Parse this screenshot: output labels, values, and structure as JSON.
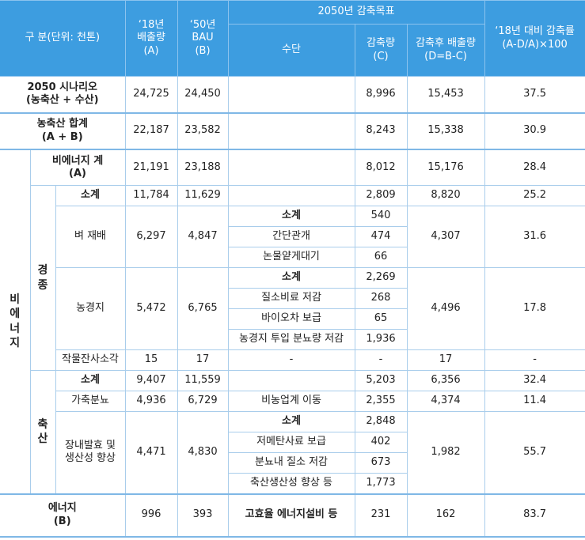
{
  "header": {
    "category": "구 분(단위: 천톤)",
    "emissions_2018": "‘18년\n배출량\n(A)",
    "bau_2050": "‘50년\nBAU\n(B)",
    "target_2050": "2050년 감축목표",
    "means": "수단",
    "reduction": "감축량\n(C)",
    "post_reduction": "감축후 배출량\n(D=B-C)",
    "reduction_rate": "‘18년 대비 감축률\n(A-D/A)×100"
  },
  "table": {
    "rows": [
      [
        "2050 시나리오\n(농축산 + 수산)",
        "24,725",
        "24,450",
        "8,996",
        "15,453",
        "37.5"
      ],
      [
        "농축산 합계\n(A + B)",
        "22,187",
        "23,582",
        "8,243",
        "15,338",
        "30.9"
      ],
      [
        "비\n에\n너\n지",
        "비에너지 계\n(A)",
        "21,191",
        "23,188",
        "8,012",
        "15,176",
        "28.4"
      ],
      [
        "경\n종",
        "소계",
        "11,784",
        "11,629",
        "2,809",
        "8,820",
        "25.2"
      ],
      [
        "벼 재배",
        "6,297",
        "4,847",
        "소계",
        "540",
        "4,307",
        "31.6"
      ],
      [
        "간단관개",
        "474"
      ],
      [
        "논물얕게대기",
        "66"
      ],
      [
        "농경지",
        "5,472",
        "6,765",
        "소계",
        "2,269",
        "4,496",
        "17.8"
      ],
      [
        "질소비료 저감",
        "268"
      ],
      [
        "바이오차 보급",
        "65"
      ],
      [
        "농경지 투입 분뇨량 저감",
        "1,936"
      ],
      [
        "작물잔사소각",
        "15",
        "17",
        "-",
        "-",
        "17",
        "-"
      ],
      [
        "축\n산",
        "소계",
        "9,407",
        "11,559",
        "5,203",
        "6,356",
        "32.4"
      ],
      [
        "가축분뇨",
        "4,936",
        "6,729",
        "비농업계 이동",
        "2,355",
        "4,374",
        "11.4"
      ],
      [
        "장내발효 및\n생산성 향상",
        "4,471",
        "4,830",
        "소계",
        "2,848",
        "1,982",
        "55.7"
      ],
      [
        "저메탄사료 보급",
        "402"
      ],
      [
        "분뇨내 질소 저감",
        "673"
      ],
      [
        "축산생산성 향상 등",
        "1,773"
      ],
      [
        "에너지\n(B)",
        "996",
        "393",
        "고효율 에너지설비 등",
        "231",
        "162",
        "83.7"
      ]
    ]
  }
}
